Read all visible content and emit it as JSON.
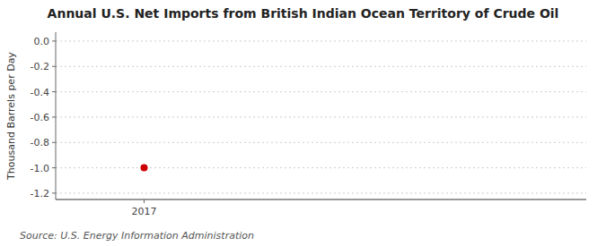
{
  "chart_data": {
    "type": "scatter",
    "title": "Annual U.S. Net Imports from British Indian Ocean Territory of Crude Oil",
    "ylabel": "Thousand Barrels per Day",
    "source": "Source: U.S. Energy Information Administration",
    "x": [
      2017
    ],
    "values": [
      -1.0
    ],
    "color": "#cc0000",
    "marker": "circle",
    "xlim": [
      2016.6,
      2019.0
    ],
    "ylim": [
      -1.25,
      0.07
    ],
    "xticks": [
      2017
    ],
    "yticks": [
      {
        "value": 0.0,
        "label": "0.0"
      },
      -0.2,
      -0.4,
      -0.6,
      -0.8,
      {
        "value": -1.0,
        "label": "-1.0"
      },
      -1.2
    ],
    "grid": true
  }
}
